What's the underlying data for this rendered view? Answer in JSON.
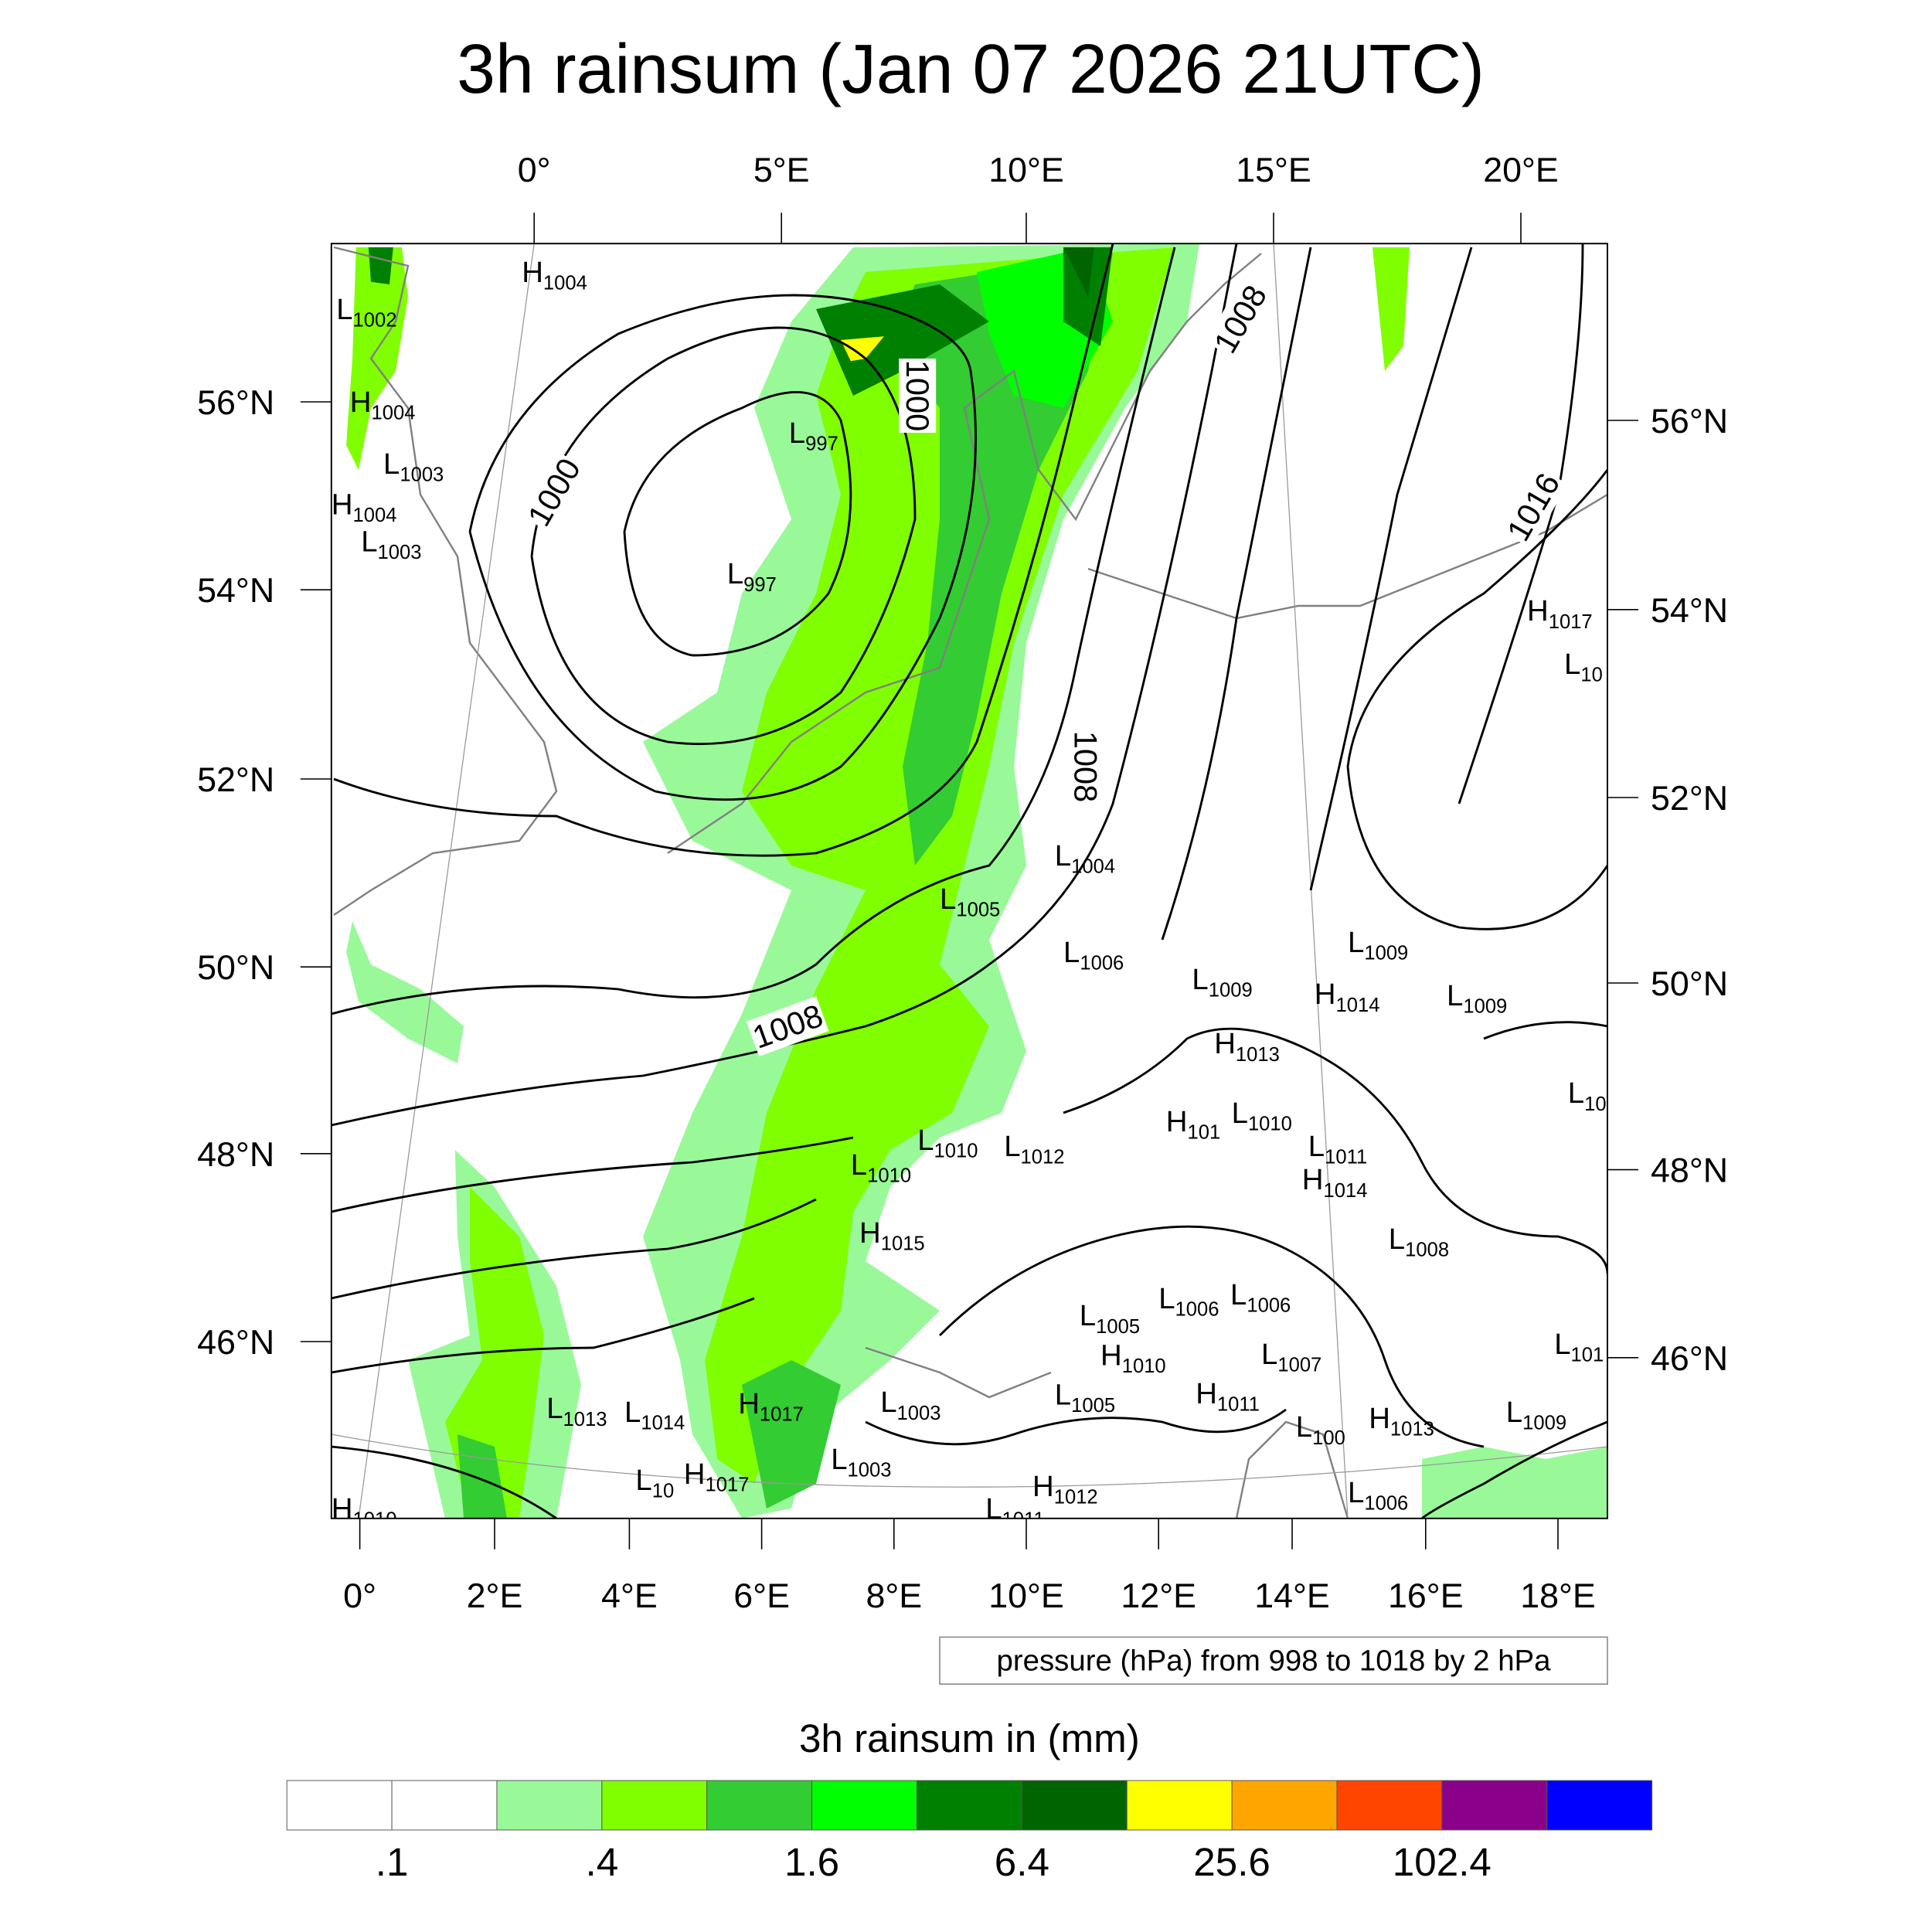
{
  "title": "3h rainsum (Jan 07 2026 21UTC)",
  "top_lon_labels": [
    "0°",
    "5°E",
    "10°E",
    "15°E",
    "20°E"
  ],
  "bottom_lon_labels": [
    "0°",
    "2°E",
    "4°E",
    "6°E",
    "8°E",
    "10°E",
    "12°E",
    "14°E",
    "16°E",
    "18°E"
  ],
  "left_lat_labels": [
    "56°N",
    "54°N",
    "52°N",
    "50°N",
    "48°N",
    "46°N"
  ],
  "right_lat_labels": [
    "56°N",
    "54°N",
    "52°N",
    "50°N",
    "48°N",
    "46°N"
  ],
  "contour_info": "pressure (hPa) from 998 to 1018 by 2 hPa",
  "colorbar": {
    "title": "3h rainsum in (mm)",
    "colors": [
      "#ffffff",
      "#ffffff",
      "#99f999",
      "#80ff00",
      "#33cc33",
      "#00ff00",
      "#008000",
      "#006400",
      "#ffff00",
      "#ffa500",
      "#ff4500",
      "#8b008b",
      "#0000ff"
    ],
    "tick_labels": [
      ".1",
      ".4",
      "1.6",
      "6.4",
      "25.6",
      "102.4"
    ]
  },
  "contour_labels": [
    "1000",
    "1000",
    "1008",
    "1016",
    "1008",
    "1008"
  ],
  "pressure_centers": [
    {
      "t": "H",
      "v": "1004"
    },
    {
      "t": "L",
      "v": "1002"
    },
    {
      "t": "H",
      "v": "1004"
    },
    {
      "t": "L",
      "v": "997"
    },
    {
      "t": "L",
      "v": "1003"
    },
    {
      "t": "H",
      "v": "1004"
    },
    {
      "t": "L",
      "v": "1003"
    },
    {
      "t": "L",
      "v": "997"
    },
    {
      "t": "H",
      "v": "1017"
    },
    {
      "t": "L",
      "v": "10"
    },
    {
      "t": "L",
      "v": "1004"
    },
    {
      "t": "L",
      "v": "1005"
    },
    {
      "t": "L",
      "v": "1006"
    },
    {
      "t": "L",
      "v": "1009"
    },
    {
      "t": "L",
      "v": "1009"
    },
    {
      "t": "H",
      "v": "1014"
    },
    {
      "t": "L",
      "v": "1009"
    },
    {
      "t": "H",
      "v": "1013"
    },
    {
      "t": "L",
      "v": "10"
    },
    {
      "t": "L",
      "v": "1010"
    },
    {
      "t": "H",
      "v": "101"
    },
    {
      "t": "L",
      "v": "1010"
    },
    {
      "t": "L",
      "v": "1012"
    },
    {
      "t": "L",
      "v": "1011"
    },
    {
      "t": "L",
      "v": "1010"
    },
    {
      "t": "H",
      "v": "1014"
    },
    {
      "t": "H",
      "v": "1015"
    },
    {
      "t": "L",
      "v": "1008"
    },
    {
      "t": "L",
      "v": "1006"
    },
    {
      "t": "L",
      "v": "1006"
    },
    {
      "t": "L",
      "v": "1005"
    },
    {
      "t": "H",
      "v": "1010"
    },
    {
      "t": "L",
      "v": "1007"
    },
    {
      "t": "L",
      "v": "101"
    },
    {
      "t": "L",
      "v": "1005"
    },
    {
      "t": "L",
      "v": "1013"
    },
    {
      "t": "L",
      "v": "1014"
    },
    {
      "t": "H",
      "v": "1017"
    },
    {
      "t": "L",
      "v": "1003"
    },
    {
      "t": "H",
      "v": "1011"
    },
    {
      "t": "L",
      "v": "100"
    },
    {
      "t": "H",
      "v": "1013"
    },
    {
      "t": "L",
      "v": "1009"
    },
    {
      "t": "L",
      "v": "1003"
    },
    {
      "t": "H",
      "v": "1017"
    },
    {
      "t": "L",
      "v": "10"
    },
    {
      "t": "H",
      "v": "1012"
    },
    {
      "t": "L",
      "v": "1006"
    },
    {
      "t": "L",
      "v": "1011"
    },
    {
      "t": "H",
      "v": "1010"
    }
  ]
}
